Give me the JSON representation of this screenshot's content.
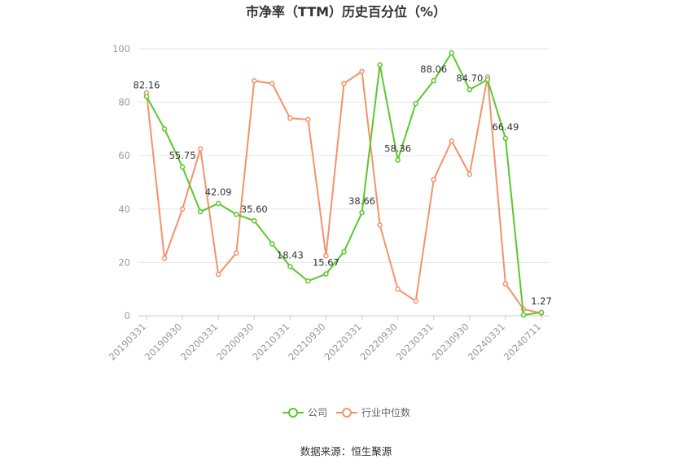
{
  "title": "市净率（TTM）历史百分位（%）",
  "source": "数据来源：恒生聚源",
  "chart_data": {
    "type": "line",
    "title": "市净率（TTM）历史百分位（%）",
    "ylim": [
      0,
      100
    ],
    "yticks": [
      0,
      20,
      40,
      60,
      80,
      100
    ],
    "grid": true,
    "legend_position": "bottom",
    "x_tick_labels": [
      "20190331",
      "20190930",
      "20200331",
      "20200930",
      "20210331",
      "20210930",
      "20220331",
      "20220930",
      "20230331",
      "20230930",
      "20240331",
      "20240711"
    ],
    "x": [
      "20190331",
      "20190630",
      "20190930",
      "20191231",
      "20200331",
      "20200630",
      "20200930",
      "20201231",
      "20210331",
      "20210630",
      "20210930",
      "20211231",
      "20220331",
      "20220630",
      "20220930",
      "20221231",
      "20230331",
      "20230630",
      "20230930",
      "20231231",
      "20240331",
      "20240630",
      "20240711"
    ],
    "series": [
      {
        "name": "公司",
        "color": "#5cc72e",
        "values": [
          82.16,
          70.0,
          55.75,
          39.0,
          42.09,
          38.0,
          35.6,
          27.0,
          18.43,
          13.0,
          15.67,
          24.0,
          38.66,
          94.0,
          58.36,
          79.5,
          88.06,
          98.5,
          84.7,
          88.5,
          66.49,
          0.3,
          1.27
        ],
        "data_labels": {
          "0": "82.16",
          "2": "55.75",
          "4": "42.09",
          "6": "35.60",
          "8": "18.43",
          "10": "15.67",
          "12": "38.66",
          "14": "58.36",
          "16": "88.06",
          "18": "84.70",
          "20": "66.49",
          "22": "1.27"
        }
      },
      {
        "name": "行业中位数",
        "color": "#f5926a",
        "values": [
          83.5,
          21.5,
          40.0,
          62.5,
          15.5,
          23.5,
          88.0,
          87.0,
          74.0,
          73.5,
          22.5,
          87.0,
          91.5,
          34.0,
          10.0,
          5.5,
          51.0,
          65.5,
          53.0,
          89.5,
          12.0,
          2.5,
          1.0
        ]
      }
    ]
  }
}
